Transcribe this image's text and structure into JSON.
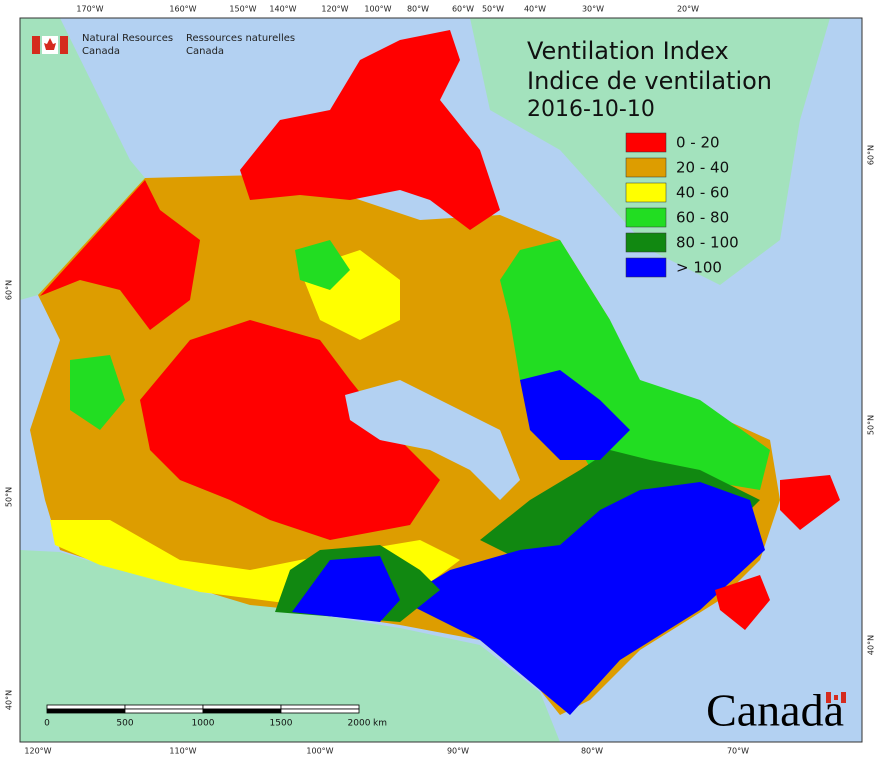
{
  "header": {
    "agency_en": [
      "Natural Resources",
      "Canada"
    ],
    "agency_fr": [
      "Ressources naturelles",
      "Canada"
    ]
  },
  "title": [
    "Ventilation Index",
    "Indice de ventilation"
  ],
  "date": "2016-10-10",
  "legend": [
    {
      "label": "0 - 20",
      "color": "#ff0000"
    },
    {
      "label": "20 - 40",
      "color": "#dd9d00"
    },
    {
      "label": "40 - 60",
      "color": "#ffff00"
    },
    {
      "label": "60 - 80",
      "color": "#22dd22"
    },
    {
      "label": "80 - 100",
      "color": "#118811"
    },
    {
      "label": "> 100",
      "color": "#0000ff"
    }
  ],
  "graticule": {
    "top": [
      "170°W",
      "160°W",
      "150°W",
      "140°W",
      "120°W",
      "100°W",
      "80°W",
      "60°W",
      "50°W",
      "40°W",
      "30°W",
      "20°W"
    ],
    "bottom": [
      "120°W",
      "110°W",
      "100°W",
      "90°W",
      "80°W",
      "70°W"
    ],
    "left": [
      "60°N",
      "50°N",
      "40°N"
    ],
    "right": [
      "60°N",
      "50°N",
      "40°N"
    ]
  },
  "scale_bar": {
    "labels": [
      "0",
      "500",
      "1000",
      "1500",
      "2000"
    ],
    "unit": "km"
  },
  "wordmark": "Canada"
}
